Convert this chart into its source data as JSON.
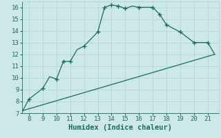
{
  "xlabel": "Humidex (Indice chaleur)",
  "background_color": "#cce9e7",
  "line_color": "#1a6b5e",
  "grid_color": "#b0d8d4",
  "curve1_x": [
    7.5,
    8,
    9,
    9.5,
    10,
    10.5,
    11,
    11.5,
    12,
    13,
    13.5,
    14,
    14.5,
    15,
    15.5,
    16,
    17,
    17.5,
    18,
    19,
    20,
    20.5,
    21,
    21.5
  ],
  "curve1_y": [
    7.1,
    8.2,
    9.1,
    10.1,
    9.9,
    11.4,
    11.4,
    12.4,
    12.7,
    13.9,
    16.0,
    16.2,
    16.1,
    15.9,
    16.1,
    16.0,
    16.0,
    15.4,
    14.5,
    13.9,
    13.0,
    13.0,
    13.0,
    12.0
  ],
  "markers_x": [
    8,
    9,
    10,
    10.5,
    11,
    12,
    13,
    13.5,
    14,
    14.5,
    15,
    16,
    17,
    17.5,
    18,
    19,
    20,
    21
  ],
  "markers_y": [
    8.2,
    9.1,
    9.9,
    11.4,
    11.4,
    12.7,
    13.9,
    16.0,
    16.2,
    16.1,
    15.9,
    16.0,
    16.0,
    15.4,
    14.5,
    13.9,
    13.0,
    13.0
  ],
  "curve2_x": [
    7.5,
    21.5
  ],
  "curve2_y": [
    7.2,
    12.0
  ],
  "xlim": [
    7.5,
    21.8
  ],
  "ylim": [
    7.0,
    16.5
  ],
  "xticks": [
    8,
    9,
    10,
    11,
    12,
    13,
    14,
    15,
    16,
    17,
    18,
    19,
    20,
    21
  ],
  "yticks": [
    7,
    8,
    9,
    10,
    11,
    12,
    13,
    14,
    15,
    16
  ],
  "tick_fontsize": 6.5,
  "label_fontsize": 7.5
}
